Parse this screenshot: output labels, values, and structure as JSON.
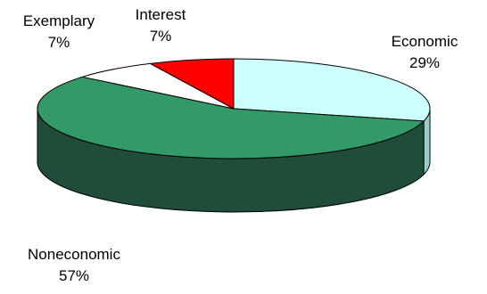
{
  "chart_data": {
    "type": "pie",
    "style": "3d",
    "slices": [
      {
        "label": "Economic",
        "value": 29,
        "percent_label": "29%",
        "color": "#ccffff",
        "side_color": "#99cccc"
      },
      {
        "label": "Noneconomic",
        "value": 57,
        "percent_label": "57%",
        "color": "#339966",
        "side_color": "#1f4d3a"
      },
      {
        "label": "Exemplary",
        "value": 7,
        "percent_label": "7%",
        "color": "#ffffff",
        "side_color": "#dddddd"
      },
      {
        "label": "Interest",
        "value": 7,
        "percent_label": "7%",
        "color": "#ff0000",
        "side_color": "#990000"
      }
    ]
  }
}
